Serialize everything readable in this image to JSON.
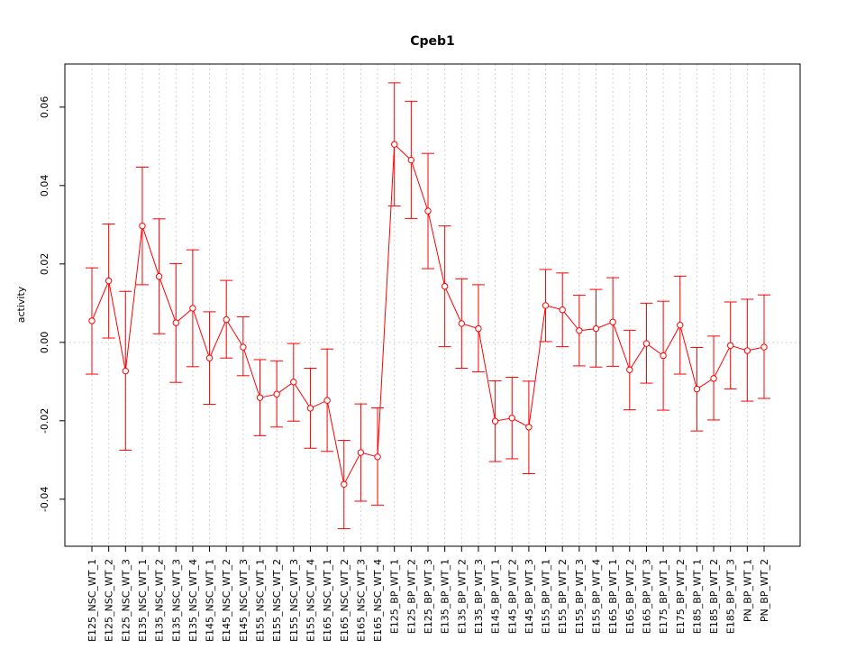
{
  "chart_data": {
    "type": "line",
    "title": "Cpeb1",
    "xlabel": "",
    "ylabel": "activity",
    "ylim": [
      -0.052,
      0.071
    ],
    "yticks": [
      -0.04,
      -0.02,
      0.0,
      0.02,
      0.04,
      0.06
    ],
    "ytick_labels": [
      "-0.04",
      "-0.02",
      "0.00",
      "0.02",
      "0.04",
      "0.06"
    ],
    "grid": true,
    "reference_line": 0.0,
    "color": "#ff0000",
    "categories": [
      "E125_NSC_WT_1",
      "E125_NSC_WT_2",
      "E125_NSC_WT_3",
      "E135_NSC_WT_1",
      "E135_NSC_WT_2",
      "E135_NSC_WT_3",
      "E135_NSC_WT_4",
      "E145_NSC_WT_1",
      "E145_NSC_WT_2",
      "E145_NSC_WT_3",
      "E155_NSC_WT_1",
      "E155_NSC_WT_2",
      "E155_NSC_WT_3",
      "E155_NSC_WT_4",
      "E165_NSC_WT_1",
      "E165_NSC_WT_2",
      "E165_NSC_WT_3",
      "E165_NSC_WT_4",
      "E125_BP_WT_1",
      "E125_BP_WT_2",
      "E125_BP_WT_3",
      "E135_BP_WT_1",
      "E135_BP_WT_2",
      "E135_BP_WT_3",
      "E145_BP_WT_1",
      "E145_BP_WT_2",
      "E145_BP_WT_3",
      "E155_BP_WT_1",
      "E155_BP_WT_2",
      "E155_BP_WT_3",
      "E155_BP_WT_4",
      "E165_BP_WT_1",
      "E165_BP_WT_2",
      "E165_BP_WT_3",
      "E175_BP_WT_1",
      "E175_BP_WT_2",
      "E185_BP_WT_1",
      "E185_BP_WT_2",
      "E185_BP_WT_3",
      "PN_BP_WT_1",
      "PN_BP_WT_2"
    ],
    "values": [
      0.0055,
      0.0157,
      -0.0073,
      0.0297,
      0.0168,
      0.005,
      0.0087,
      -0.004,
      0.0058,
      -0.0012,
      -0.0141,
      -0.0132,
      -0.0101,
      -0.0168,
      -0.0148,
      -0.0362,
      -0.0281,
      -0.0292,
      0.0505,
      0.0465,
      0.0335,
      0.0143,
      0.0048,
      0.0035,
      -0.0201,
      -0.0193,
      -0.0216,
      0.0094,
      0.0083,
      0.003,
      0.0035,
      0.0052,
      -0.007,
      -0.0003,
      -0.0034,
      0.0044,
      -0.0119,
      -0.0092,
      -0.0008,
      -0.0021,
      -0.0012
    ],
    "upper": [
      0.019,
      0.0302,
      0.013,
      0.0447,
      0.0315,
      0.0201,
      0.0236,
      0.0078,
      0.0158,
      0.0065,
      -0.0044,
      -0.0047,
      -0.0003,
      -0.0066,
      -0.0017,
      -0.025,
      -0.0157,
      -0.0167,
      0.0662,
      0.0615,
      0.0482,
      0.0297,
      0.0162,
      0.0147,
      -0.0098,
      -0.0089,
      -0.0099,
      0.0186,
      0.0177,
      0.012,
      0.0135,
      0.0165,
      0.0031,
      0.01,
      0.0105,
      0.0169,
      -0.0013,
      0.0016,
      0.0103,
      0.011,
      0.0121
    ],
    "lower": [
      -0.0081,
      0.0011,
      -0.0275,
      0.0147,
      0.0022,
      -0.0102,
      -0.0062,
      -0.0158,
      -0.004,
      -0.0085,
      -0.0238,
      -0.0216,
      -0.0201,
      -0.027,
      -0.0278,
      -0.0475,
      -0.0405,
      -0.0415,
      0.0348,
      0.0316,
      0.0188,
      -0.0011,
      -0.0066,
      -0.0075,
      -0.0304,
      -0.0297,
      -0.0335,
      0.0002,
      -0.0011,
      -0.006,
      -0.0063,
      -0.0061,
      -0.0172,
      -0.0104,
      -0.0173,
      -0.0081,
      -0.0226,
      -0.0198,
      -0.0119,
      -0.015,
      -0.0143
    ]
  }
}
